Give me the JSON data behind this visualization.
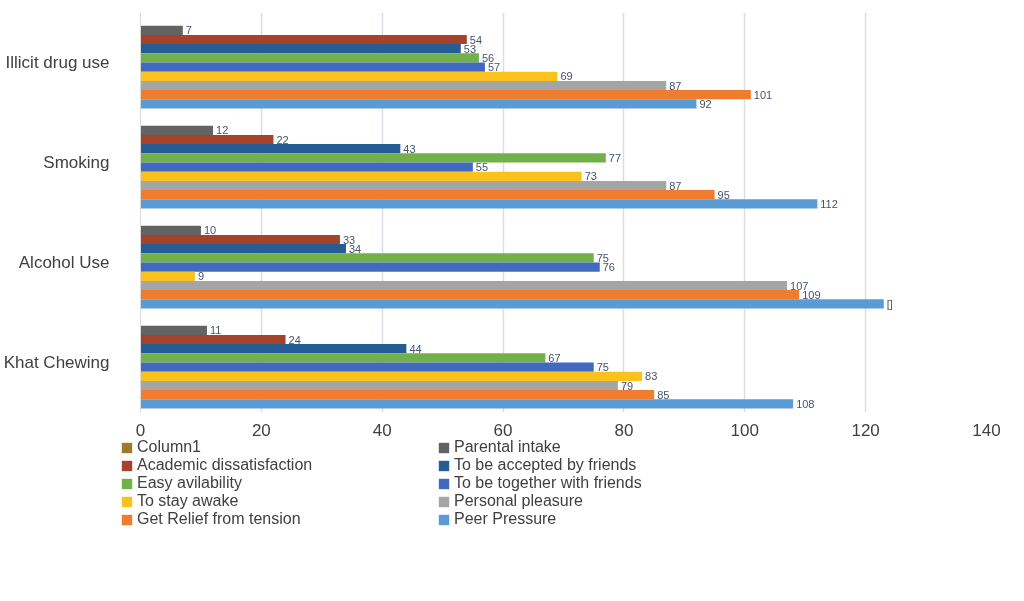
{
  "chart_data": {
    "type": "bar",
    "orientation": "horizontal",
    "categories": [
      "Illicit drug use",
      "Smoking",
      "Alcohol Use",
      "Khat Chewing"
    ],
    "series": [
      {
        "name": "Column1",
        "color": "#9c7a2c",
        "values": [
          null,
          null,
          null,
          null
        ]
      },
      {
        "name": "Parental intake",
        "color": "#636363",
        "values": [
          7,
          12,
          10,
          11
        ],
        "value_labels": [
          "7",
          "12",
          "10",
          "11"
        ]
      },
      {
        "name": "Academic dissatisfaction",
        "color": "#a5432a",
        "values": [
          54,
          22,
          33,
          24
        ],
        "value_labels": [
          "54",
          "22",
          "33",
          "24"
        ]
      },
      {
        "name": "To be accepted by friends",
        "color": "#245d96",
        "values": [
          53,
          43,
          34,
          44
        ],
        "value_labels": [
          "53",
          "43",
          "34",
          "44"
        ]
      },
      {
        "name": "Easy avilability",
        "color": "#72b04a",
        "values": [
          56,
          77,
          75,
          67
        ],
        "value_labels": [
          "56",
          "77",
          "75",
          "67"
        ]
      },
      {
        "name": "To be together with friends",
        "color": "#4169c0",
        "values": [
          57,
          55,
          76,
          75
        ],
        "value_labels": [
          "57",
          "55",
          "76",
          "75"
        ]
      },
      {
        "name": "To stay awake",
        "color": "#fcc21c",
        "values": [
          69,
          73,
          9,
          83
        ],
        "value_labels": [
          "69",
          "73",
          "9",
          "83"
        ]
      },
      {
        "name": "Personal pleasure",
        "color": "#a5a5a5",
        "values": [
          87,
          87,
          107,
          79
        ],
        "value_labels": [
          "87",
          "87",
          "107",
          "79"
        ]
      },
      {
        "name": "Get Relief from tension",
        "color": "#f07c30",
        "values": [
          101,
          95,
          109,
          85
        ],
        "value_labels": [
          "101",
          "95",
          "109",
          "85"
        ]
      },
      {
        "name": "Peer Pressure",
        "color": "#5b9bd5",
        "values": [
          92,
          112,
          123,
          108
        ],
        "value_labels": [
          "92",
          "112",
          "[]",
          "108"
        ]
      }
    ],
    "xlim": [
      0,
      140
    ],
    "xticks": [
      0,
      20,
      40,
      60,
      80,
      100,
      120,
      140
    ],
    "grid": "x",
    "legend": "bottom"
  }
}
